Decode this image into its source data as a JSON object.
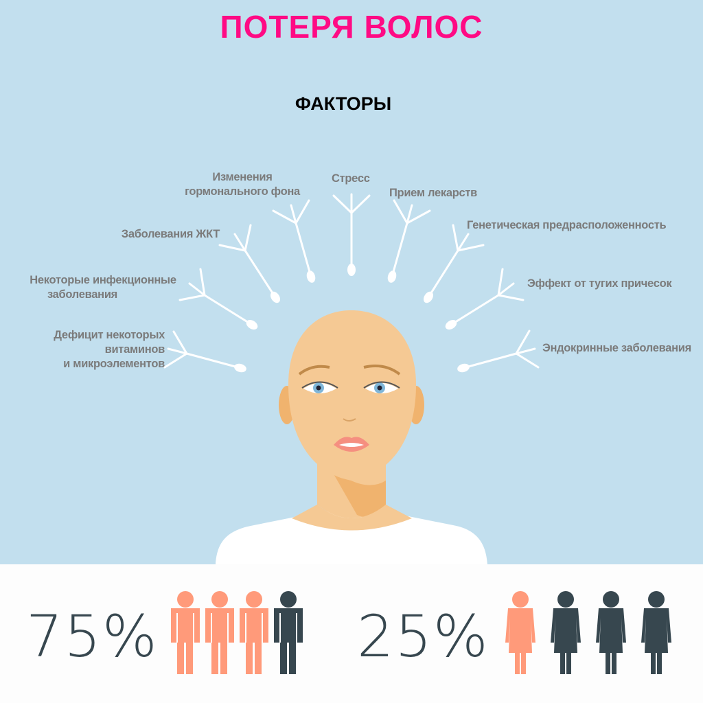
{
  "title": "ПОТЕРЯ ВОЛОС",
  "subtitle": "ФАКТОРЫ",
  "factors": [
    {
      "line1": "Дефицит некоторых",
      "line2": "витаминов",
      "line3": "и микроэлементов"
    },
    {
      "line1": "Некоторые инфекционные",
      "line2": "заболевания"
    },
    {
      "line1": "Заболевания ЖКТ"
    },
    {
      "line1": "Изменения",
      "line2": "гормонального фона"
    },
    {
      "line1": "Стресс"
    },
    {
      "line1": "Прием лекарств"
    },
    {
      "line1": "Генетическая предрасположенность"
    },
    {
      "line1": "Эффект от тугих причесок"
    },
    {
      "line1": "Эндокринные заболевания"
    }
  ],
  "stats": {
    "men": {
      "label": "75%",
      "value": 75,
      "highlighted": 3,
      "total": 4
    },
    "women": {
      "label": "25%",
      "value": 25,
      "highlighted": 1,
      "total": 4
    }
  },
  "colors": {
    "background": "#c2dfee",
    "title": "#ff0a84",
    "highlight": "#ff9a7a",
    "dark": "#37474f",
    "skin": "#f5c994"
  }
}
